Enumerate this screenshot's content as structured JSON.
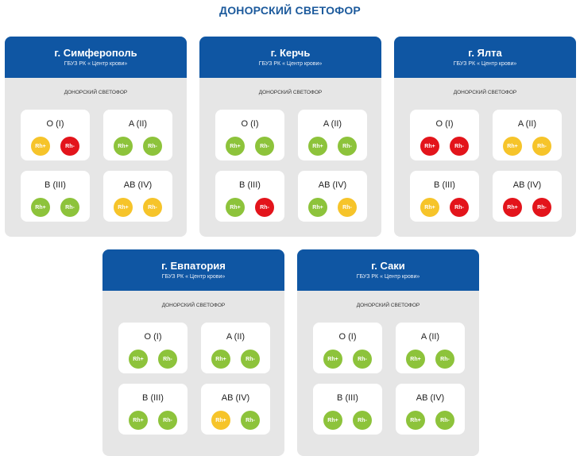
{
  "title": "ДОНОРСКИЙ СВЕТОФОР",
  "colors": {
    "green": "#8dc33b",
    "yellow": "#f6c42a",
    "red": "#e3141b",
    "header": "#0f56a3"
  },
  "cards": [
    {
      "city": "г. Симферополь",
      "org": "ГБУЗ РК « Центр крови»",
      "section": "ДОНОРСКИЙ СВЕТОФОР",
      "groups": [
        {
          "label": "O (I)",
          "rh": [
            {
              "text": "Rh+",
              "status": "yellow"
            },
            {
              "text": "Rh-",
              "status": "red"
            }
          ]
        },
        {
          "label": "A (II)",
          "rh": [
            {
              "text": "Rh+",
              "status": "green"
            },
            {
              "text": "Rh-",
              "status": "green"
            }
          ]
        },
        {
          "label": "B (III)",
          "rh": [
            {
              "text": "Rh+",
              "status": "green"
            },
            {
              "text": "Rh-",
              "status": "green"
            }
          ]
        },
        {
          "label": "AB (IV)",
          "rh": [
            {
              "text": "Rh+",
              "status": "yellow"
            },
            {
              "text": "Rh-",
              "status": "yellow"
            }
          ]
        }
      ]
    },
    {
      "city": "г. Керчь",
      "org": "ГБУЗ РК « Центр крови»",
      "section": "ДОНОРСКИЙ СВЕТОФОР",
      "groups": [
        {
          "label": "O (I)",
          "rh": [
            {
              "text": "Rh+",
              "status": "green"
            },
            {
              "text": "Rh-",
              "status": "green"
            }
          ]
        },
        {
          "label": "A (II)",
          "rh": [
            {
              "text": "Rh+",
              "status": "green"
            },
            {
              "text": "Rh-",
              "status": "green"
            }
          ]
        },
        {
          "label": "B (III)",
          "rh": [
            {
              "text": "Rh+",
              "status": "green"
            },
            {
              "text": "Rh-",
              "status": "red"
            }
          ]
        },
        {
          "label": "AB (IV)",
          "rh": [
            {
              "text": "Rh+",
              "status": "green"
            },
            {
              "text": "Rh-",
              "status": "yellow"
            }
          ]
        }
      ]
    },
    {
      "city": "г. Ялта",
      "org": "ГБУЗ РК « Центр крови»",
      "section": "ДОНОРСКИЙ СВЕТОФОР",
      "groups": [
        {
          "label": "O (I)",
          "rh": [
            {
              "text": "Rh+",
              "status": "red"
            },
            {
              "text": "Rh-",
              "status": "red"
            }
          ]
        },
        {
          "label": "A (II)",
          "rh": [
            {
              "text": "Rh+",
              "status": "yellow"
            },
            {
              "text": "Rh-",
              "status": "yellow"
            }
          ]
        },
        {
          "label": "B (III)",
          "rh": [
            {
              "text": "Rh+",
              "status": "yellow"
            },
            {
              "text": "Rh-",
              "status": "red"
            }
          ]
        },
        {
          "label": "AB (IV)",
          "rh": [
            {
              "text": "Rh+",
              "status": "red"
            },
            {
              "text": "Rh-",
              "status": "red"
            }
          ]
        }
      ]
    },
    {
      "city": "г. Евпатория",
      "org": "ГБУЗ РК « Центр крови»",
      "section": "ДОНОРСКИЙ СВЕТОФОР",
      "groups": [
        {
          "label": "O (I)",
          "rh": [
            {
              "text": "Rh+",
              "status": "green"
            },
            {
              "text": "Rh-",
              "status": "green"
            }
          ]
        },
        {
          "label": "A (II)",
          "rh": [
            {
              "text": "Rh+",
              "status": "green"
            },
            {
              "text": "Rh-",
              "status": "green"
            }
          ]
        },
        {
          "label": "B (III)",
          "rh": [
            {
              "text": "Rh+",
              "status": "green"
            },
            {
              "text": "Rh-",
              "status": "green"
            }
          ]
        },
        {
          "label": "AB (IV)",
          "rh": [
            {
              "text": "Rh+",
              "status": "yellow"
            },
            {
              "text": "Rh-",
              "status": "green"
            }
          ]
        }
      ]
    },
    {
      "city": "г. Саки",
      "org": "ГБУЗ РК « Центр крови»",
      "section": "ДОНОРСКИЙ СВЕТОФОР",
      "groups": [
        {
          "label": "O (I)",
          "rh": [
            {
              "text": "Rh+",
              "status": "green"
            },
            {
              "text": "Rh-",
              "status": "green"
            }
          ]
        },
        {
          "label": "A (II)",
          "rh": [
            {
              "text": "Rh+",
              "status": "green"
            },
            {
              "text": "Rh-",
              "status": "green"
            }
          ]
        },
        {
          "label": "B (III)",
          "rh": [
            {
              "text": "Rh+",
              "status": "green"
            },
            {
              "text": "Rh-",
              "status": "green"
            }
          ]
        },
        {
          "label": "AB (IV)",
          "rh": [
            {
              "text": "Rh+",
              "status": "green"
            },
            {
              "text": "Rh-",
              "status": "green"
            }
          ]
        }
      ]
    }
  ]
}
